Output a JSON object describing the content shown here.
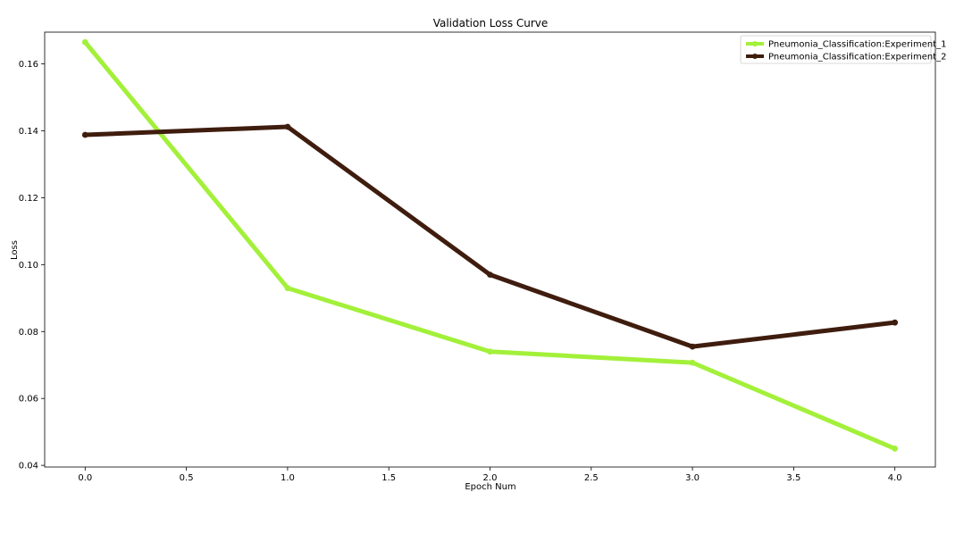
{
  "chart_data": {
    "type": "line",
    "title": "Validation Loss Curve",
    "xlabel": "Epoch Num",
    "ylabel": "Loss",
    "x": [
      0,
      1,
      2,
      3,
      4
    ],
    "xlim": [
      -0.2,
      4.2
    ],
    "ylim": [
      0.0395,
      0.1695
    ],
    "xticks": [
      "0.0",
      "0.5",
      "1.0",
      "1.5",
      "2.0",
      "2.5",
      "3.0",
      "3.5",
      "4.0"
    ],
    "yticks": [
      "0.04",
      "0.06",
      "0.08",
      "0.10",
      "0.12",
      "0.14",
      "0.16"
    ],
    "grid": false,
    "legend_position": "top-right",
    "series": [
      {
        "name": "Pneumonia_Classification:Experiment_1",
        "color": "#a3f03a",
        "values": [
          0.1665,
          0.093,
          0.074,
          0.0707,
          0.045
        ]
      },
      {
        "name": "Pneumonia_Classification:Experiment_2",
        "color": "#3f1d0e",
        "values": [
          0.1388,
          0.1412,
          0.097,
          0.0755,
          0.0827
        ]
      }
    ]
  }
}
